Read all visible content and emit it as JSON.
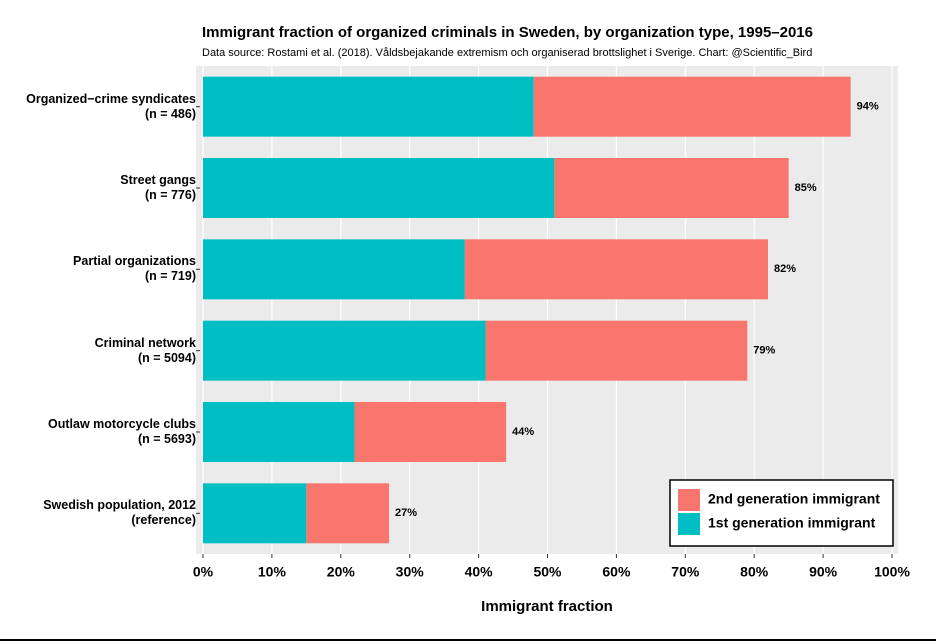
{
  "chart_data": {
    "type": "stacked-barh",
    "title": "Immigrant fraction of organized criminals in Sweden, by organization type, 1995–2016",
    "subtitle": "Data source: Rostami et al. (2018). Våldsbejakande extremism och organiserad brottslighet i Sverige. Chart: @Scientific_Bird",
    "x_label": "Immigrant fraction",
    "categories": [
      "Organized−crime syndicates\n(n = 486)",
      "Street gangs\n(n = 776)",
      "Partial organizations\n(n = 719)",
      "Criminal network\n(n = 5094)",
      "Outlaw motorcycle clubs\n(n = 5693)",
      "Swedish population, 2012\n(reference)"
    ],
    "series": [
      {
        "name": "1st generation immigrant",
        "color": "#00BFC4",
        "values": [
          48,
          51,
          38,
          41,
          22,
          15
        ]
      },
      {
        "name": "2nd generation immigrant",
        "color": "#F8766D",
        "values": [
          46,
          34,
          44,
          38,
          22,
          12
        ]
      }
    ],
    "totals": [
      94,
      85,
      82,
      79,
      44,
      27
    ],
    "total_labels": [
      "94%",
      "85%",
      "82%",
      "79%",
      "44%",
      "27%"
    ],
    "xlim": [
      0,
      100
    ],
    "xticks": [
      {
        "value": 0,
        "label": "0%"
      },
      {
        "value": 10,
        "label": "10%"
      },
      {
        "value": 20,
        "label": "20%"
      },
      {
        "value": 30,
        "label": "30%"
      },
      {
        "value": 40,
        "label": "40%"
      },
      {
        "value": 50,
        "label": "50%"
      },
      {
        "value": 60,
        "label": "60%"
      },
      {
        "value": 70,
        "label": "70%"
      },
      {
        "value": 80,
        "label": "80%"
      },
      {
        "value": 90,
        "label": "90%"
      },
      {
        "value": 100,
        "label": "100%"
      }
    ],
    "grid": true,
    "legend_position": "bottom-right"
  }
}
